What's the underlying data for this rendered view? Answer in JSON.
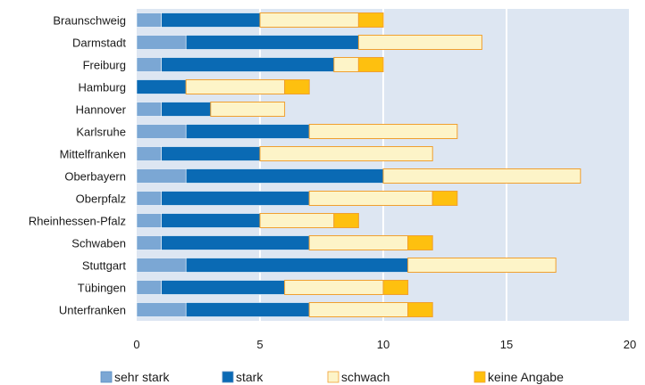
{
  "chart_data": {
    "type": "bar",
    "orientation": "horizontal",
    "stacked": true,
    "categories": [
      "Braunschweig",
      "Darmstadt",
      "Freiburg",
      "Hamburg",
      "Hannover",
      "Karlsruhe",
      "Mittelfranken",
      "Oberbayern",
      "Oberpfalz",
      "Rheinhessen-Pfalz",
      "Schwaben",
      "Stuttgart",
      "Tübingen",
      "Unterfranken"
    ],
    "series": [
      {
        "name": "sehr stark",
        "color": "#7ba7d4",
        "values": [
          1,
          2,
          1,
          0,
          1,
          2,
          1,
          2,
          1,
          1,
          1,
          2,
          1,
          2
        ]
      },
      {
        "name": "stark",
        "color": "#0a6ab4",
        "values": [
          4,
          7,
          7,
          2,
          2,
          5,
          4,
          8,
          6,
          4,
          6,
          9,
          5,
          5
        ]
      },
      {
        "name": "schwach",
        "color": "#fdf4c8",
        "values": [
          4,
          5,
          1,
          4,
          3,
          6,
          7,
          8,
          5,
          3,
          4,
          6,
          4,
          4
        ]
      },
      {
        "name": "keine Angabe",
        "color": "#fec00f",
        "values": [
          1,
          0,
          1,
          1,
          0,
          0,
          0,
          0,
          1,
          1,
          1,
          0,
          1,
          1
        ]
      }
    ],
    "xlim": [
      0,
      20
    ],
    "xticks": [
      "0",
      "5",
      "10",
      "15",
      "20"
    ],
    "title": "",
    "xlabel": "",
    "ylabel": "",
    "grid": "vertical",
    "legend_position": "bottom",
    "colors": {
      "plot_background": "#dde6f2",
      "gridline": "#ffffff",
      "bar_border": "#f0a030"
    }
  }
}
